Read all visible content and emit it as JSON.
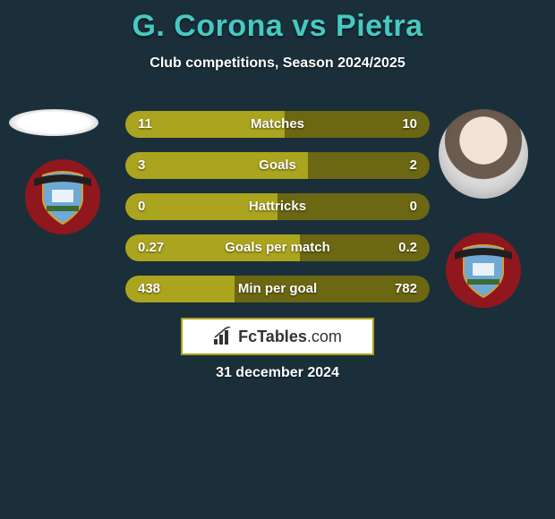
{
  "background_color": "#1a2f3a",
  "title": "G. Corona vs Pietra",
  "title_color": "#46c9c1",
  "subtitle": "Club competitions, Season 2024/2025",
  "subtitle_color": "#ffffff",
  "date": "31 december 2024",
  "date_color": "#ffffff",
  "bar_fill_color": "#aba41e",
  "bar_bg_color": "#6b6713",
  "bar_text_color": "#ffffff",
  "rows": [
    {
      "label": "Matches",
      "left": "11",
      "right": "10",
      "left_num": 11,
      "right_num": 10
    },
    {
      "label": "Goals",
      "left": "3",
      "right": "2",
      "left_num": 3,
      "right_num": 2
    },
    {
      "label": "Hattricks",
      "left": "0",
      "right": "0",
      "left_num": 0,
      "right_num": 0
    },
    {
      "label": "Goals per match",
      "left": "0.27",
      "right": "0.2",
      "left_num": 0.27,
      "right_num": 0.2
    },
    {
      "label": "Min per goal",
      "left": "438",
      "right": "782",
      "left_num": 438,
      "right_num": 782
    }
  ],
  "club_badge": {
    "outer_color": "#90171d",
    "shield_color": "#6fa9d4",
    "shield_stroke": "#d4a030",
    "banner_color": "#202020",
    "banner_text": "S. CITTA DI PONTEDERA",
    "banner_text_color": "#d4a030"
  },
  "logo": {
    "text_main": "FcTables",
    "text_suffix": ".com",
    "border_color": "#a9a21a",
    "bars_color": "#333333"
  }
}
